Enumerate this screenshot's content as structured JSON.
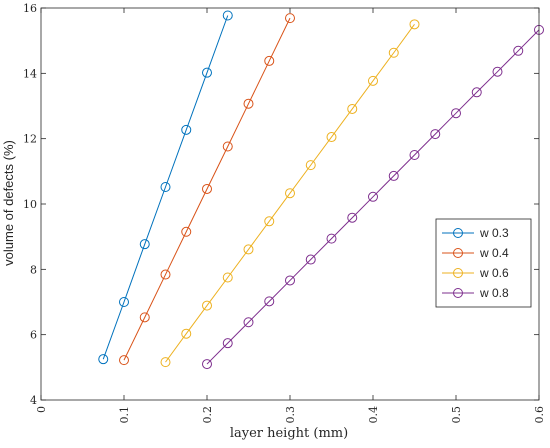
{
  "chart_data": {
    "type": "line",
    "title": "",
    "xlabel": "layer height (mm)",
    "ylabel": "volume of defects (%)",
    "xlim": [
      0,
      0.6
    ],
    "ylim": [
      4,
      16
    ],
    "xticks": [
      0,
      0.1,
      0.2,
      0.3,
      0.4,
      0.5,
      0.6
    ],
    "xtick_labels": [
      "0",
      "0.1",
      "0.2",
      "0.3",
      "0.4",
      "0.5",
      "0.6"
    ],
    "yticks": [
      4,
      6,
      8,
      10,
      12,
      14,
      16
    ],
    "ytick_labels": [
      "4",
      "6",
      "8",
      "10",
      "12",
      "14",
      "16"
    ],
    "grid": false,
    "legend_position": "right",
    "marker": "circle",
    "series": [
      {
        "name": "w 0.3",
        "color": "#0072BD",
        "x": [
          0.075,
          0.1,
          0.125,
          0.15,
          0.175,
          0.2,
          0.225
        ],
        "y": [
          5.25,
          7.0,
          8.77,
          10.52,
          12.27,
          14.02,
          15.77
        ]
      },
      {
        "name": "w 0.4",
        "color": "#D95319",
        "x": [
          0.1,
          0.125,
          0.15,
          0.175,
          0.2,
          0.225,
          0.25,
          0.275,
          0.3
        ],
        "y": [
          5.22,
          6.53,
          7.84,
          9.15,
          10.46,
          11.76,
          13.07,
          14.38,
          15.69
        ]
      },
      {
        "name": "w 0.6",
        "color": "#EDB120",
        "x": [
          0.15,
          0.175,
          0.2,
          0.225,
          0.25,
          0.275,
          0.3,
          0.325,
          0.35,
          0.375,
          0.4,
          0.425,
          0.45
        ],
        "y": [
          5.16,
          6.03,
          6.89,
          7.75,
          8.61,
          9.47,
          10.33,
          11.19,
          12.05,
          12.91,
          13.77,
          14.63,
          15.5
        ]
      },
      {
        "name": "w 0.8",
        "color": "#7E2F8E",
        "x": [
          0.2,
          0.225,
          0.25,
          0.275,
          0.3,
          0.325,
          0.35,
          0.375,
          0.4,
          0.425,
          0.45,
          0.475,
          0.5,
          0.525,
          0.55,
          0.575,
          0.6
        ],
        "y": [
          5.1,
          5.74,
          6.38,
          7.02,
          7.66,
          8.3,
          8.94,
          9.58,
          10.22,
          10.86,
          11.5,
          12.14,
          12.78,
          13.42,
          14.05,
          14.69,
          15.33
        ]
      }
    ]
  }
}
